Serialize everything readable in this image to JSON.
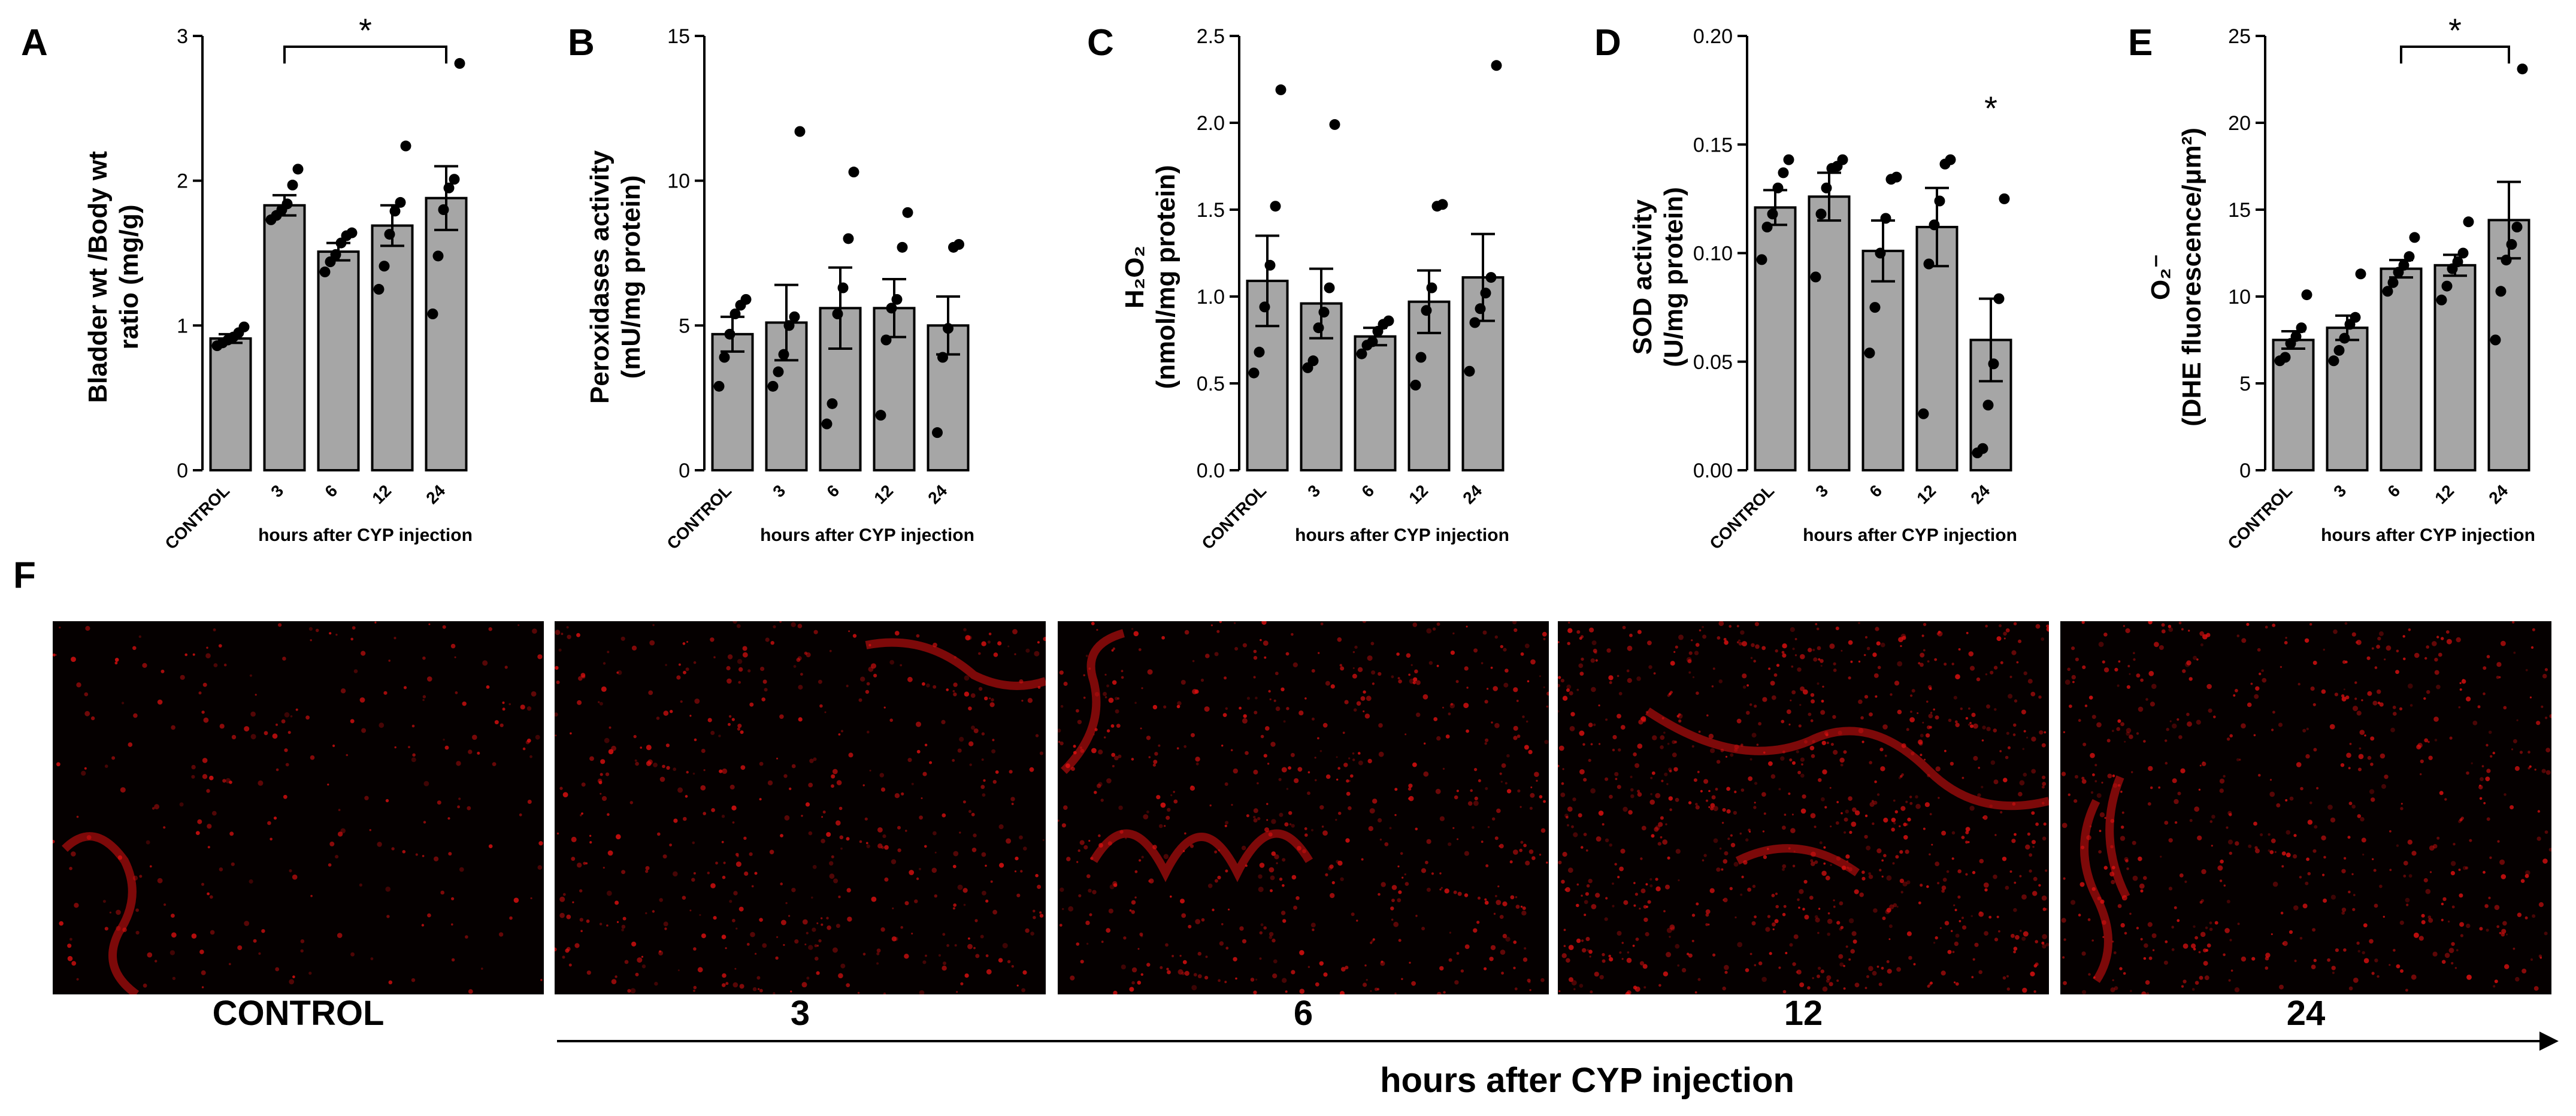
{
  "panel_f": {
    "letter": "F",
    "images": [
      {
        "label": "CONTROL",
        "tone": "sparse"
      },
      {
        "label": "3",
        "tone": "diffuse"
      },
      {
        "label": "6",
        "tone": "folds"
      },
      {
        "label": "12",
        "tone": "bright"
      },
      {
        "label": "24",
        "tone": "edge"
      }
    ],
    "time_axis_label": "hours after CYP injection",
    "stain_color": "#e01010"
  },
  "chart_data": [
    {
      "letter": "A",
      "type": "bar",
      "categories": [
        "CONTROL",
        "3",
        "6",
        "12",
        "24"
      ],
      "values": [
        0.91,
        1.83,
        1.51,
        1.69,
        1.88
      ],
      "errors": [
        0.03,
        0.07,
        0.06,
        0.14,
        0.22
      ],
      "points": [
        [
          0.86,
          0.88,
          0.9,
          0.92,
          0.95,
          0.99
        ],
        [
          1.73,
          1.76,
          1.8,
          1.84,
          1.97,
          2.08
        ],
        [
          1.37,
          1.44,
          1.49,
          1.57,
          1.62,
          1.64
        ],
        [
          1.25,
          1.41,
          1.63,
          1.79,
          1.85,
          2.24
        ],
        [
          1.08,
          1.48,
          1.8,
          1.95,
          2.01,
          2.81
        ]
      ],
      "ylabel_lines": [
        "Bladder wt /Body wt",
        "ratio (mg/g)"
      ],
      "xlabel": "hours after CYP injection",
      "ylim": [
        0,
        3
      ],
      "yticks": [
        "0",
        "1",
        "2",
        "3"
      ],
      "significance": {
        "type": "bracket",
        "from": 1,
        "to": 4,
        "label": "*"
      },
      "bar_color": "#a6a6a6"
    },
    {
      "letter": "B",
      "type": "bar",
      "categories": [
        "CONTROL",
        "3",
        "6",
        "12",
        "24"
      ],
      "values": [
        4.7,
        5.1,
        5.6,
        5.6,
        5.0
      ],
      "errors": [
        0.6,
        1.3,
        1.4,
        1.0,
        1.0
      ],
      "points": [
        [
          2.9,
          3.9,
          4.7,
          5.4,
          5.7,
          5.9
        ],
        [
          2.9,
          3.4,
          4.0,
          5.0,
          5.3,
          11.7
        ],
        [
          1.6,
          2.3,
          5.4,
          6.3,
          8.0,
          10.3
        ],
        [
          1.9,
          4.5,
          5.6,
          5.9,
          7.7,
          8.9
        ],
        [
          1.3,
          3.9,
          4.9,
          7.7,
          7.8
        ]
      ],
      "ylabel_lines": [
        "Peroxidases activity",
        "(mU/mg protein)"
      ],
      "xlabel": "hours after CYP injection",
      "ylim": [
        0,
        15
      ],
      "yticks": [
        "0",
        "5",
        "10",
        "15"
      ],
      "significance": null,
      "bar_color": "#a6a6a6"
    },
    {
      "letter": "C",
      "type": "bar",
      "categories": [
        "CONTROL",
        "3",
        "6",
        "12",
        "24"
      ],
      "values": [
        1.09,
        0.96,
        0.77,
        0.97,
        1.11
      ],
      "errors": [
        0.26,
        0.2,
        0.05,
        0.18,
        0.25
      ],
      "points": [
        [
          0.56,
          0.68,
          0.94,
          1.18,
          1.52,
          2.19
        ],
        [
          0.59,
          0.63,
          0.82,
          0.91,
          1.05,
          1.99
        ],
        [
          0.67,
          0.72,
          0.74,
          0.8,
          0.84,
          0.86
        ],
        [
          0.49,
          0.65,
          0.92,
          1.05,
          1.52,
          1.53
        ],
        [
          0.57,
          0.85,
          0.93,
          1.02,
          1.11,
          2.33
        ]
      ],
      "ylabel_lines": [
        "H₂O₂",
        "(nmol/mg protein)"
      ],
      "xlabel": "hours after CYP injection",
      "ylim": [
        0,
        2.5
      ],
      "yticks": [
        "0.0",
        "0.5",
        "1.0",
        "1.5",
        "2.0",
        "2.5"
      ],
      "significance": null,
      "bar_color": "#a6a6a6"
    },
    {
      "letter": "D",
      "type": "bar",
      "categories": [
        "CONTROL",
        "3",
        "6",
        "12",
        "24"
      ],
      "values": [
        0.121,
        0.126,
        0.101,
        0.112,
        0.06
      ],
      "errors": [
        0.008,
        0.011,
        0.014,
        0.018,
        0.019
      ],
      "points": [
        [
          0.097,
          0.112,
          0.118,
          0.13,
          0.137,
          0.143
        ],
        [
          0.089,
          0.118,
          0.13,
          0.139,
          0.14,
          0.143
        ],
        [
          0.054,
          0.075,
          0.1,
          0.116,
          0.134,
          0.135
        ],
        [
          0.026,
          0.095,
          0.113,
          0.124,
          0.141,
          0.143
        ],
        [
          0.008,
          0.01,
          0.03,
          0.049,
          0.079,
          0.125
        ]
      ],
      "ylabel_lines": [
        "SOD activity",
        "(U/mg protein)"
      ],
      "xlabel": "hours after CYP injection",
      "ylim": [
        0,
        0.2
      ],
      "yticks": [
        "0.00",
        "0.05",
        "0.10",
        "0.15",
        "0.20"
      ],
      "significance": {
        "type": "star",
        "at": 4,
        "label": "*"
      },
      "bar_color": "#a6a6a6"
    },
    {
      "letter": "E",
      "type": "bar",
      "categories": [
        "CONTROL",
        "3",
        "6",
        "12",
        "24"
      ],
      "values": [
        7.5,
        8.2,
        11.6,
        11.8,
        14.4
      ],
      "errors": [
        0.5,
        0.7,
        0.5,
        0.6,
        2.2
      ],
      "points": [
        [
          6.3,
          6.5,
          7.3,
          7.7,
          8.2,
          10.1
        ],
        [
          6.3,
          6.9,
          7.6,
          8.4,
          8.8,
          11.3
        ],
        [
          10.3,
          10.8,
          11.4,
          11.8,
          12.3,
          13.4
        ],
        [
          9.8,
          10.6,
          11.6,
          12.0,
          12.5,
          14.3
        ],
        [
          7.5,
          10.3,
          12.1,
          13.0,
          14.0,
          23.1
        ]
      ],
      "ylabel_lines": [
        "O₂⁻",
        "(DHE fluorescence/μm²)"
      ],
      "xlabel": "hours after CYP injection",
      "ylim": [
        0,
        25
      ],
      "yticks": [
        "0",
        "5",
        "10",
        "15",
        "20",
        "25"
      ],
      "significance": {
        "type": "bracket",
        "from": 2,
        "to": 4,
        "label": "*"
      },
      "bar_color": "#a6a6a6"
    }
  ]
}
